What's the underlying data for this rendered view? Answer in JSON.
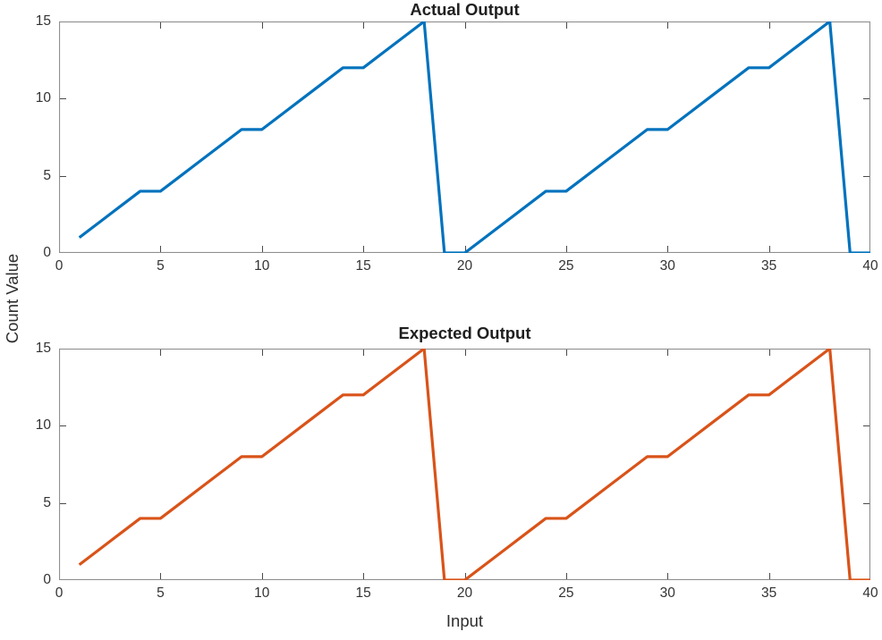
{
  "figure": {
    "xlabel": "Input",
    "ylabel": "Count Value",
    "background_color": "#ffffff",
    "axis_box_color": "#8f8f8f",
    "tick_mark_color": "#4a4a4a",
    "tick_label_color": "#333333"
  },
  "chart_data": [
    {
      "type": "line",
      "title": "Actual Output",
      "xlabel": "",
      "ylabel": "",
      "xlim": [
        0,
        40
      ],
      "ylim": [
        0,
        15
      ],
      "xticks": [
        0,
        5,
        10,
        15,
        20,
        25,
        30,
        35,
        40
      ],
      "yticks": [
        0,
        5,
        10,
        15
      ],
      "grid": false,
      "legend": "none",
      "series": [
        {
          "name": "Actual Output",
          "color": "#0072BD",
          "line_width": 3.2,
          "x": [
            1,
            2,
            3,
            4,
            5,
            6,
            7,
            8,
            9,
            10,
            11,
            12,
            13,
            14,
            15,
            16,
            17,
            18,
            19,
            20,
            21,
            22,
            23,
            24,
            25,
            26,
            27,
            28,
            29,
            30,
            31,
            32,
            33,
            34,
            35,
            36,
            37,
            38,
            39,
            40
          ],
          "y": [
            1,
            2,
            3,
            4,
            4,
            5,
            6,
            7,
            8,
            8,
            9,
            10,
            11,
            12,
            12,
            13,
            14,
            15,
            0,
            0,
            1,
            2,
            3,
            4,
            4,
            5,
            6,
            7,
            8,
            8,
            9,
            10,
            11,
            12,
            12,
            13,
            14,
            15,
            0,
            0
          ]
        }
      ]
    },
    {
      "type": "line",
      "title": "Expected Output",
      "xlabel": "Input",
      "ylabel": "",
      "xlim": [
        0,
        40
      ],
      "ylim": [
        0,
        15
      ],
      "xticks": [
        0,
        5,
        10,
        15,
        20,
        25,
        30,
        35,
        40
      ],
      "yticks": [
        0,
        5,
        10,
        15
      ],
      "grid": false,
      "legend": "none",
      "series": [
        {
          "name": "Expected Output",
          "color": "#D95319",
          "line_width": 3.2,
          "x": [
            1,
            2,
            3,
            4,
            5,
            6,
            7,
            8,
            9,
            10,
            11,
            12,
            13,
            14,
            15,
            16,
            17,
            18,
            19,
            20,
            21,
            22,
            23,
            24,
            25,
            26,
            27,
            28,
            29,
            30,
            31,
            32,
            33,
            34,
            35,
            36,
            37,
            38,
            39,
            40
          ],
          "y": [
            1,
            2,
            3,
            4,
            4,
            5,
            6,
            7,
            8,
            8,
            9,
            10,
            11,
            12,
            12,
            13,
            14,
            15,
            0,
            0,
            1,
            2,
            3,
            4,
            4,
            5,
            6,
            7,
            8,
            8,
            9,
            10,
            11,
            12,
            12,
            13,
            14,
            15,
            0,
            0
          ]
        }
      ]
    }
  ]
}
